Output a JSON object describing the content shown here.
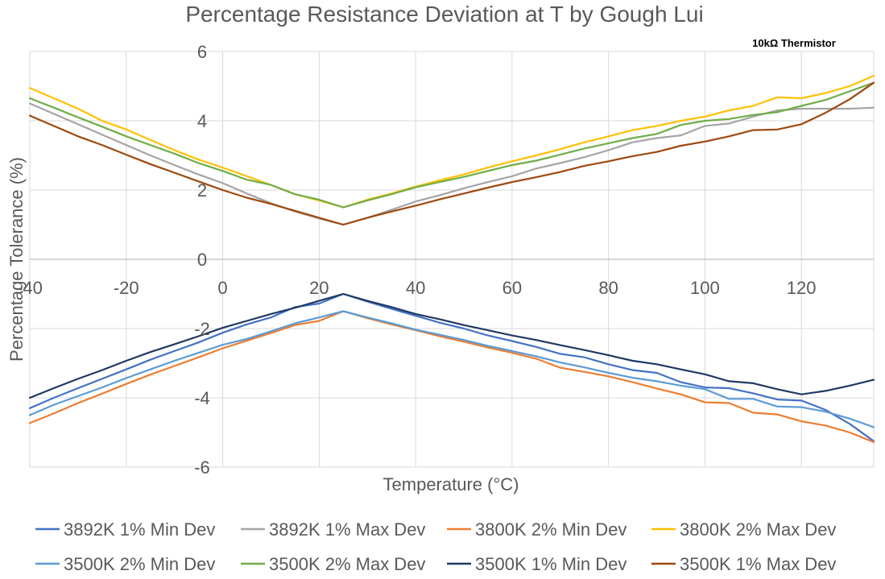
{
  "chart_data": {
    "type": "line",
    "title": "Percentage Resistance Deviation at T by Gough Lui",
    "annotation": "10kΩ Thermistor",
    "xlabel": "Temperature (°C)",
    "ylabel": "Percentage Tolerance (%)",
    "xlim": [
      -40,
      135
    ],
    "ylim": [
      -6,
      6
    ],
    "x_ticks": [
      -40,
      -20,
      0,
      20,
      40,
      60,
      80,
      100,
      120
    ],
    "x_tick_labels": [
      "-40",
      "-20",
      "0",
      "20",
      "40",
      "60",
      "80",
      "100",
      "120"
    ],
    "y_ticks": [
      6,
      4,
      2,
      0,
      -2,
      -4,
      -6
    ],
    "y_tick_labels": [
      "6",
      "4",
      "2",
      "0",
      "-2",
      "-4",
      "-6"
    ],
    "grid": true,
    "legend_position": "bottom",
    "x": [
      -40,
      -35,
      -30,
      -25,
      -20,
      -15,
      -10,
      -5,
      0,
      5,
      10,
      15,
      20,
      25,
      30,
      35,
      40,
      45,
      50,
      55,
      60,
      65,
      70,
      75,
      80,
      85,
      90,
      95,
      100,
      105,
      110,
      115,
      120,
      125,
      130,
      135
    ],
    "series": [
      {
        "name": "3892K 1% Min Dev",
        "color": "#4472c4",
        "values": [
          -4.3,
          -4.0,
          -3.72,
          -3.45,
          -3.18,
          -2.9,
          -2.65,
          -2.4,
          -2.12,
          -1.88,
          -1.68,
          -1.38,
          -1.28,
          -1.0,
          -1.22,
          -1.43,
          -1.63,
          -1.83,
          -2.0,
          -2.2,
          -2.36,
          -2.53,
          -2.73,
          -2.83,
          -3.03,
          -3.2,
          -3.28,
          -3.55,
          -3.7,
          -3.72,
          -3.87,
          -4.05,
          -4.08,
          -4.35,
          -4.75,
          -5.25
        ]
      },
      {
        "name": "3892K 1% Max Dev",
        "color": "#a5a5a5",
        "values": [
          4.5,
          4.2,
          3.9,
          3.6,
          3.3,
          3.0,
          2.72,
          2.45,
          2.2,
          1.9,
          1.62,
          1.38,
          1.18,
          1.0,
          1.2,
          1.43,
          1.67,
          1.85,
          2.05,
          2.23,
          2.4,
          2.62,
          2.78,
          2.95,
          3.15,
          3.38,
          3.5,
          3.58,
          3.85,
          3.92,
          4.12,
          4.3,
          4.35,
          4.35,
          4.35,
          4.38
        ]
      },
      {
        "name": "3800K 2% Min Dev",
        "color": "#ed7d31",
        "values": [
          -4.73,
          -4.45,
          -4.15,
          -3.88,
          -3.6,
          -3.33,
          -3.08,
          -2.83,
          -2.57,
          -2.35,
          -2.13,
          -1.9,
          -1.78,
          -1.5,
          -1.7,
          -1.88,
          -2.05,
          -2.22,
          -2.38,
          -2.55,
          -2.7,
          -2.87,
          -3.13,
          -3.25,
          -3.38,
          -3.55,
          -3.73,
          -3.9,
          -4.13,
          -4.15,
          -4.43,
          -4.48,
          -4.68,
          -4.8,
          -5.0,
          -5.28
        ]
      },
      {
        "name": "3800K 2% Max Dev",
        "color": "#ffc000",
        "values": [
          4.95,
          4.65,
          4.35,
          4.0,
          3.75,
          3.45,
          3.15,
          2.88,
          2.65,
          2.4,
          2.15,
          1.88,
          1.7,
          1.5,
          1.72,
          1.9,
          2.1,
          2.28,
          2.45,
          2.65,
          2.83,
          3.0,
          3.18,
          3.38,
          3.55,
          3.73,
          3.85,
          4.0,
          4.12,
          4.3,
          4.43,
          4.68,
          4.65,
          4.8,
          5.0,
          5.3
        ]
      },
      {
        "name": "3500K 2% Min Dev",
        "color": "#5b9bd5",
        "values": [
          -4.5,
          -4.2,
          -3.95,
          -3.7,
          -3.43,
          -3.18,
          -2.93,
          -2.7,
          -2.47,
          -2.3,
          -2.08,
          -1.85,
          -1.68,
          -1.5,
          -1.68,
          -1.85,
          -2.03,
          -2.18,
          -2.33,
          -2.5,
          -2.65,
          -2.8,
          -2.98,
          -3.12,
          -3.28,
          -3.42,
          -3.52,
          -3.65,
          -3.75,
          -4.03,
          -4.03,
          -4.25,
          -4.27,
          -4.4,
          -4.6,
          -4.85
        ]
      },
      {
        "name": "3500K 2% Max Dev",
        "color": "#70ad47",
        "values": [
          4.65,
          4.38,
          4.1,
          3.83,
          3.55,
          3.3,
          3.05,
          2.78,
          2.55,
          2.3,
          2.15,
          1.88,
          1.72,
          1.5,
          1.7,
          1.88,
          2.08,
          2.23,
          2.38,
          2.55,
          2.72,
          2.85,
          3.02,
          3.2,
          3.35,
          3.5,
          3.62,
          3.88,
          4.0,
          4.05,
          4.17,
          4.25,
          4.43,
          4.6,
          4.85,
          5.1
        ]
      },
      {
        "name": "3500K 1% Min Dev",
        "color": "#203864",
        "values": [
          -4.0,
          -3.72,
          -3.45,
          -3.2,
          -2.93,
          -2.68,
          -2.45,
          -2.22,
          -1.98,
          -1.78,
          -1.58,
          -1.4,
          -1.2,
          -1.0,
          -1.2,
          -1.38,
          -1.58,
          -1.73,
          -1.9,
          -2.05,
          -2.2,
          -2.33,
          -2.48,
          -2.62,
          -2.77,
          -2.93,
          -3.03,
          -3.18,
          -3.32,
          -3.52,
          -3.58,
          -3.75,
          -3.9,
          -3.8,
          -3.65,
          -3.48
        ]
      },
      {
        "name": "3500K 1% Max Dev",
        "color": "#9e480e",
        "values": [
          4.15,
          3.85,
          3.55,
          3.3,
          3.02,
          2.75,
          2.5,
          2.25,
          2.0,
          1.78,
          1.6,
          1.4,
          1.2,
          1.0,
          1.2,
          1.38,
          1.55,
          1.73,
          1.9,
          2.07,
          2.23,
          2.37,
          2.52,
          2.7,
          2.83,
          2.98,
          3.1,
          3.28,
          3.4,
          3.55,
          3.73,
          3.75,
          3.9,
          4.23,
          4.62,
          5.1
        ]
      }
    ]
  }
}
